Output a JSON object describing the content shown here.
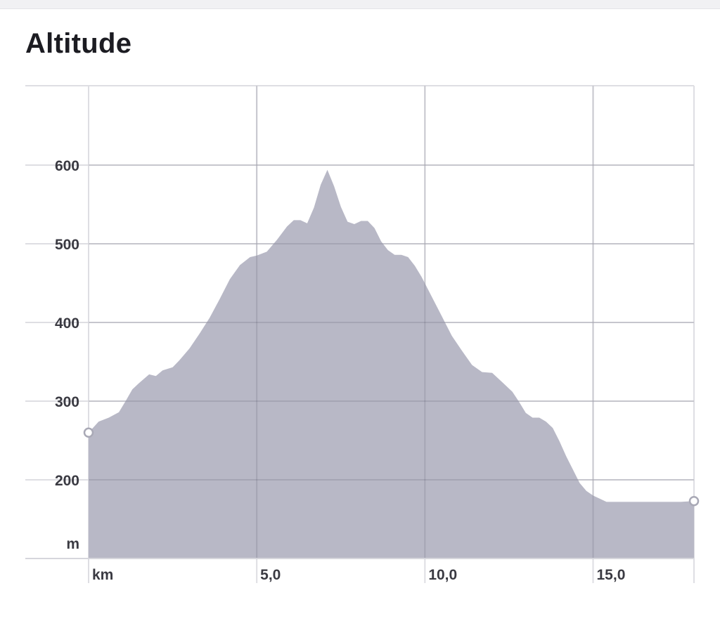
{
  "page": {
    "title": "Altitude"
  },
  "chart_data": {
    "type": "area",
    "title": "Altitude",
    "xlabel": "km",
    "ylabel": "m",
    "xlim": [
      0,
      18
    ],
    "ylim": [
      100,
      700
    ],
    "x_ticks": [
      5,
      10,
      15
    ],
    "x_tick_labels": [
      "5,0",
      "10,0",
      "15,0"
    ],
    "y_ticks": [
      200,
      300,
      400,
      500,
      600
    ],
    "y_tick_labels": [
      "200",
      "300",
      "400",
      "500",
      "600"
    ],
    "grid": true,
    "fill_color": "#b8b8c6",
    "series": [
      {
        "x": [
          0,
          0.3,
          0.6,
          0.9,
          1.1,
          1.3,
          1.5,
          1.8,
          2.0,
          2.2,
          2.5,
          2.7,
          3.0,
          3.3,
          3.6,
          3.9,
          4.2,
          4.5,
          4.8,
          5.0,
          5.3,
          5.6,
          5.9,
          6.1,
          6.3,
          6.5,
          6.7,
          6.9,
          7.1,
          7.3,
          7.5,
          7.7,
          7.9,
          8.1,
          8.3,
          8.5,
          8.7,
          8.9,
          9.1,
          9.3,
          9.5,
          9.7,
          9.9,
          10.2,
          10.5,
          10.8,
          11.1,
          11.4,
          11.7,
          12.0,
          12.3,
          12.6,
          12.8,
          13.0,
          13.2,
          13.4,
          13.6,
          13.8,
          14.0,
          14.2,
          14.4,
          14.6,
          14.8,
          15.0,
          15.2,
          15.4,
          15.6,
          15.8,
          16.0,
          16.2,
          16.4,
          16.6,
          16.8,
          17.0,
          17.2,
          17.4,
          17.6,
          18.0
        ],
        "y": [
          260,
          274,
          279,
          286,
          300,
          315,
          323,
          334,
          332,
          339,
          343,
          352,
          367,
          386,
          406,
          430,
          455,
          473,
          483,
          485,
          490,
          505,
          522,
          530,
          530,
          526,
          546,
          575,
          594,
          573,
          547,
          528,
          525,
          529,
          529,
          520,
          503,
          492,
          486,
          486,
          483,
          472,
          458,
          433,
          408,
          383,
          364,
          346,
          337,
          336,
          324,
          312,
          299,
          285,
          279,
          279,
          274,
          266,
          249,
          230,
          213,
          196,
          186,
          180,
          176,
          172,
          172,
          172,
          172,
          172,
          172,
          172,
          172,
          172,
          172,
          172,
          172,
          173
        ]
      }
    ]
  }
}
